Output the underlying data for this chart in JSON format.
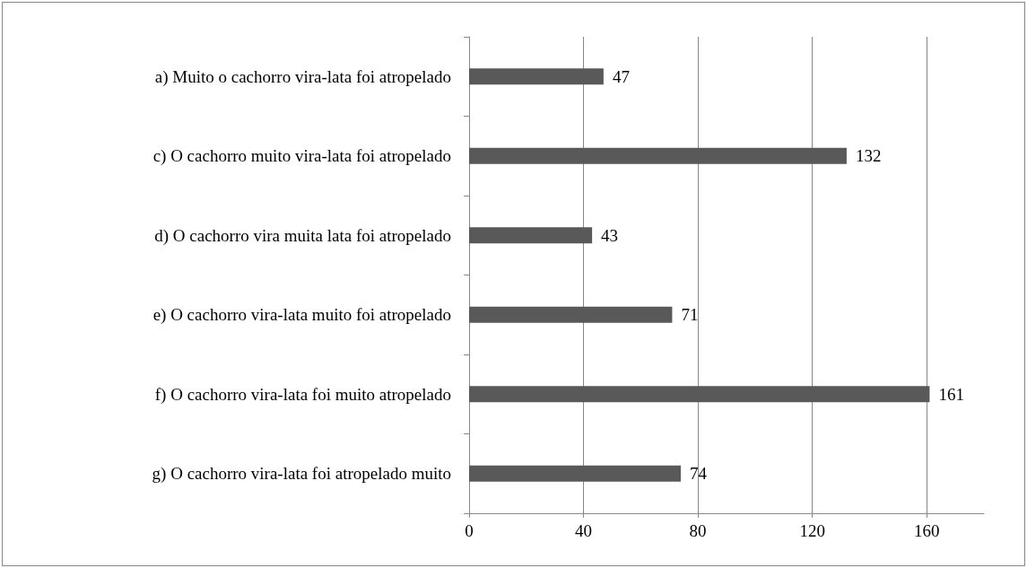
{
  "chart_data": {
    "type": "bar",
    "orientation": "horizontal",
    "categories": [
      "a) Muito o cachorro vira-lata foi atropelado",
      "c) O cachorro muito vira-lata foi atropelado",
      "d) O cachorro vira muita lata foi atropelado",
      "e) O cachorro vira-lata muito foi atropelado",
      "f) O cachorro vira-lata foi muito atropelado",
      "g) O cachorro vira-lata foi atropelado muito"
    ],
    "values": [
      47,
      132,
      43,
      71,
      161,
      74
    ],
    "color": "#595959",
    "xlim": [
      0,
      180
    ],
    "xticks": [
      0,
      40,
      80,
      120,
      160
    ],
    "grid": "x",
    "data_labels": true
  }
}
